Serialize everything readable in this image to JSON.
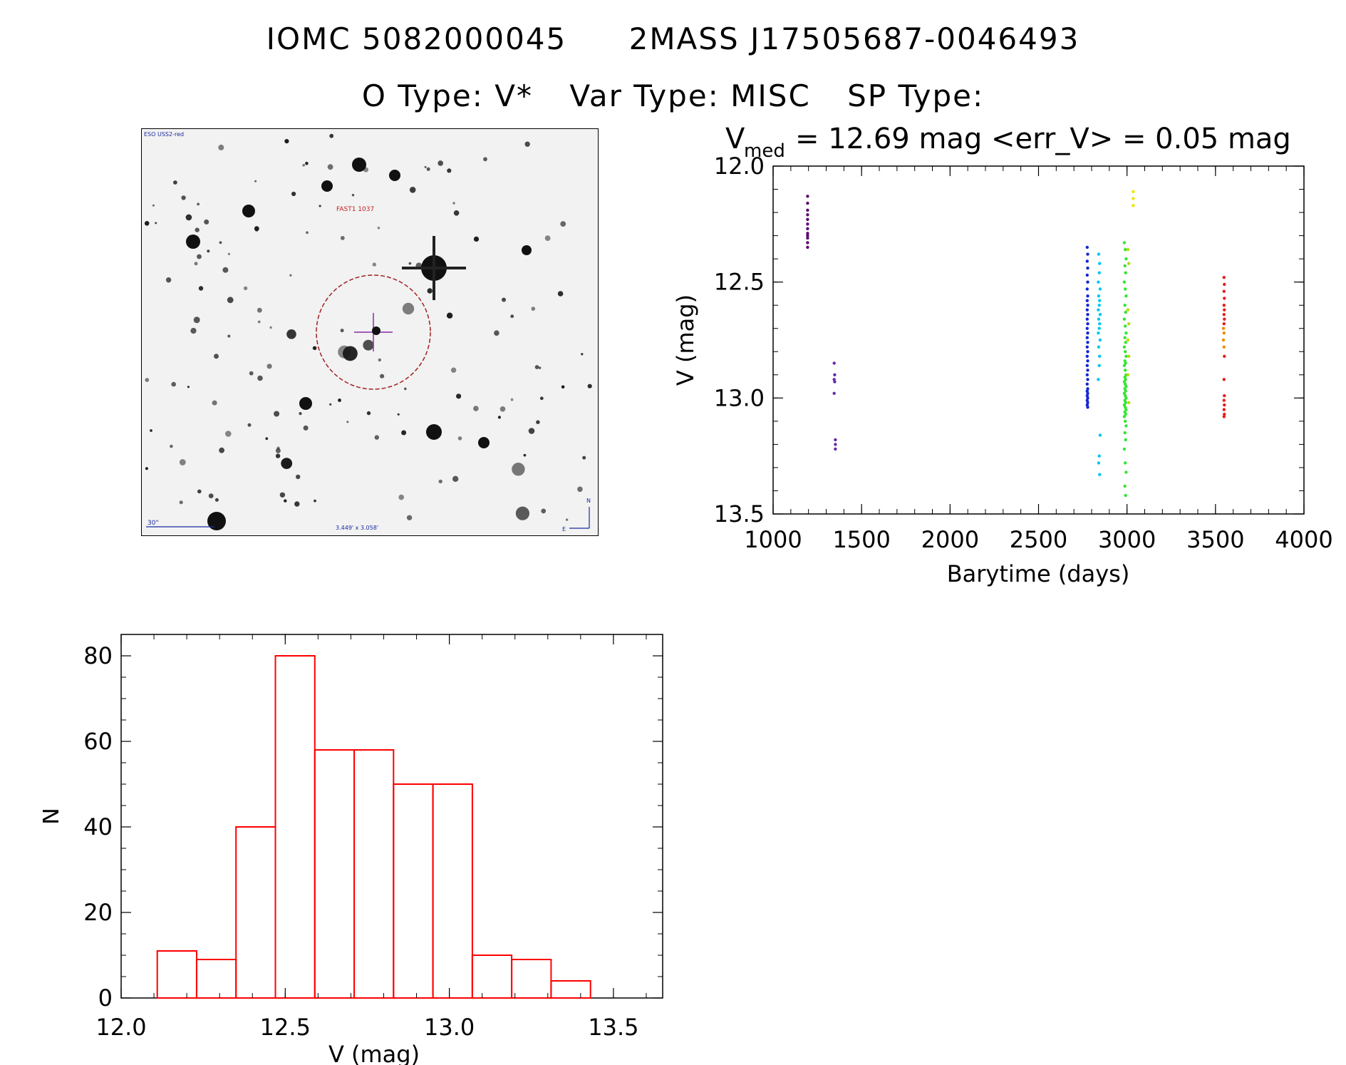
{
  "header": {
    "iomc": "IOMC 5082000045",
    "twomass": "2MASS J17505687-0046493",
    "otype": "O Type: V*",
    "vartype": "Var Type: MISC",
    "sptype": "SP Type:"
  },
  "finder": {
    "survey": "ESO USS2-red",
    "catalog_label": "FAST1 1037",
    "scale_label": "30\"",
    "size_label": "3.449' x 3.058'",
    "north": "N",
    "east": "E"
  },
  "chart_data": [
    {
      "type": "scatter",
      "title_main": "V",
      "title_sub": "med",
      "title_rest": "= 12.69 mag <err_V> = 0.05 mag",
      "xlabel": "Barytime (days)",
      "ylabel": "V (mag)",
      "xlim": [
        1000,
        4000
      ],
      "ylim": [
        13.5,
        12.0
      ],
      "y_inverted": true,
      "xticks": [
        1000,
        1500,
        2000,
        2500,
        3000,
        3500,
        4000
      ],
      "yticks": [
        12.0,
        12.5,
        13.0,
        13.5
      ],
      "series": [
        {
          "color": "#5a0a6e",
          "x": [
            1195,
            1195,
            1195,
            1195,
            1195,
            1195,
            1195,
            1195,
            1195,
            1195,
            1195,
            1195
          ],
          "y": [
            12.13,
            12.16,
            12.19,
            12.21,
            12.23,
            12.25,
            12.27,
            12.29,
            12.3,
            12.31,
            12.33,
            12.35
          ]
        },
        {
          "color": "#6a2aa8",
          "x": [
            1345,
            1348,
            1345,
            1348,
            1345,
            1352,
            1352,
            1352
          ],
          "y": [
            12.85,
            12.9,
            12.92,
            12.93,
            12.98,
            13.18,
            13.2,
            13.22
          ]
        },
        {
          "color": "#1428d2",
          "x": [
            2775,
            2778,
            2775,
            2778,
            2775,
            2778,
            2775,
            2778,
            2775,
            2778,
            2775,
            2778,
            2775,
            2778,
            2775,
            2778,
            2775,
            2778,
            2775,
            2778,
            2775,
            2778,
            2775,
            2778,
            2775,
            2778,
            2775,
            2778,
            2775,
            2778,
            2775,
            2778,
            2775,
            2778,
            2775,
            2778
          ],
          "y": [
            12.35,
            12.38,
            12.41,
            12.44,
            12.47,
            12.5,
            12.53,
            12.56,
            12.58,
            12.6,
            12.62,
            12.64,
            12.66,
            12.68,
            12.7,
            12.72,
            12.74,
            12.76,
            12.78,
            12.8,
            12.82,
            12.84,
            12.86,
            12.88,
            12.9,
            12.92,
            12.94,
            12.96,
            12.97,
            12.98,
            12.99,
            13.0,
            13.01,
            13.02,
            13.03,
            13.04
          ]
        },
        {
          "color": "#00c8f0",
          "x": [
            2840,
            2845,
            2843,
            2838,
            2848,
            2840,
            2845,
            2843,
            2838,
            2848,
            2840,
            2845,
            2843,
            2838,
            2848,
            2840,
            2845,
            2843,
            2838,
            2848,
            2843,
            2840,
            2845
          ],
          "y": [
            12.38,
            12.42,
            12.46,
            12.5,
            12.53,
            12.56,
            12.58,
            12.6,
            12.62,
            12.64,
            12.66,
            12.68,
            12.7,
            12.72,
            12.75,
            12.78,
            12.82,
            12.86,
            12.92,
            13.16,
            13.25,
            13.28,
            13.33
          ]
        },
        {
          "color": "#32e632",
          "x": [
            2985,
            2990,
            2995,
            2988,
            2992,
            2985,
            2990,
            2995,
            2988,
            2992,
            2985,
            2990,
            2995,
            2988,
            2992,
            2985,
            2990,
            2995,
            2988,
            2992,
            2985,
            2990,
            2995,
            2988,
            2992,
            2985,
            2990,
            2995,
            2988,
            2992,
            2985,
            2990,
            2995,
            2988,
            2992,
            2985,
            2990,
            2995,
            2988,
            2992,
            2985,
            2990,
            2995,
            2988,
            2992,
            2985,
            2990,
            2995,
            2988,
            2992
          ],
          "y": [
            12.33,
            12.36,
            12.4,
            12.43,
            12.46,
            12.5,
            12.53,
            12.56,
            12.6,
            12.63,
            12.66,
            12.69,
            12.72,
            12.74,
            12.76,
            12.78,
            12.8,
            12.82,
            12.84,
            12.85,
            12.86,
            12.88,
            12.9,
            12.91,
            12.92,
            12.93,
            12.94,
            12.95,
            12.96,
            12.97,
            12.98,
            12.99,
            13.0,
            13.01,
            13.02,
            13.03,
            13.04,
            13.05,
            13.06,
            13.07,
            13.08,
            13.1,
            13.12,
            13.15,
            13.18,
            13.22,
            13.28,
            13.32,
            13.38,
            13.42
          ]
        },
        {
          "color": "#b4dc00",
          "x": [
            3005,
            3010,
            3005,
            3010,
            3005,
            3010,
            3005,
            3010
          ],
          "y": [
            12.36,
            12.42,
            12.62,
            12.68,
            12.75,
            12.82,
            12.9,
            13.02
          ]
        },
        {
          "color": "#f0e600",
          "x": [
            3035,
            3035,
            3035
          ],
          "y": [
            12.11,
            12.14,
            12.17
          ]
        },
        {
          "color": "#f08c00",
          "x": [
            3545,
            3548,
            3545,
            3548
          ],
          "y": [
            12.7,
            12.72,
            12.75,
            12.78
          ]
        },
        {
          "color": "#e61e1e",
          "x": [
            3548,
            3550,
            3548,
            3550,
            3548,
            3550,
            3548,
            3550,
            3548,
            3550,
            3548,
            3550,
            3548,
            3550,
            3548,
            3550,
            3548
          ],
          "y": [
            12.48,
            12.51,
            12.54,
            12.57,
            12.6,
            12.62,
            12.64,
            12.66,
            12.68,
            12.82,
            12.92,
            12.99,
            13.01,
            13.03,
            13.05,
            13.07,
            13.08
          ]
        }
      ]
    },
    {
      "type": "bar",
      "histogram": true,
      "xlabel": "V (mag)",
      "ylabel": "N",
      "xlim": [
        12.0,
        13.65
      ],
      "ylim": [
        0,
        85
      ],
      "xticks": [
        12.0,
        12.5,
        13.0,
        13.5
      ],
      "yticks": [
        0,
        20,
        40,
        60,
        80
      ],
      "bin_edges": [
        12.11,
        12.23,
        12.35,
        12.47,
        12.59,
        12.71,
        12.83,
        12.95,
        13.07,
        13.19,
        13.31,
        13.43
      ],
      "values": [
        11,
        9,
        40,
        80,
        58,
        58,
        50,
        50,
        10,
        9,
        4
      ],
      "color": "#ff0000"
    }
  ]
}
